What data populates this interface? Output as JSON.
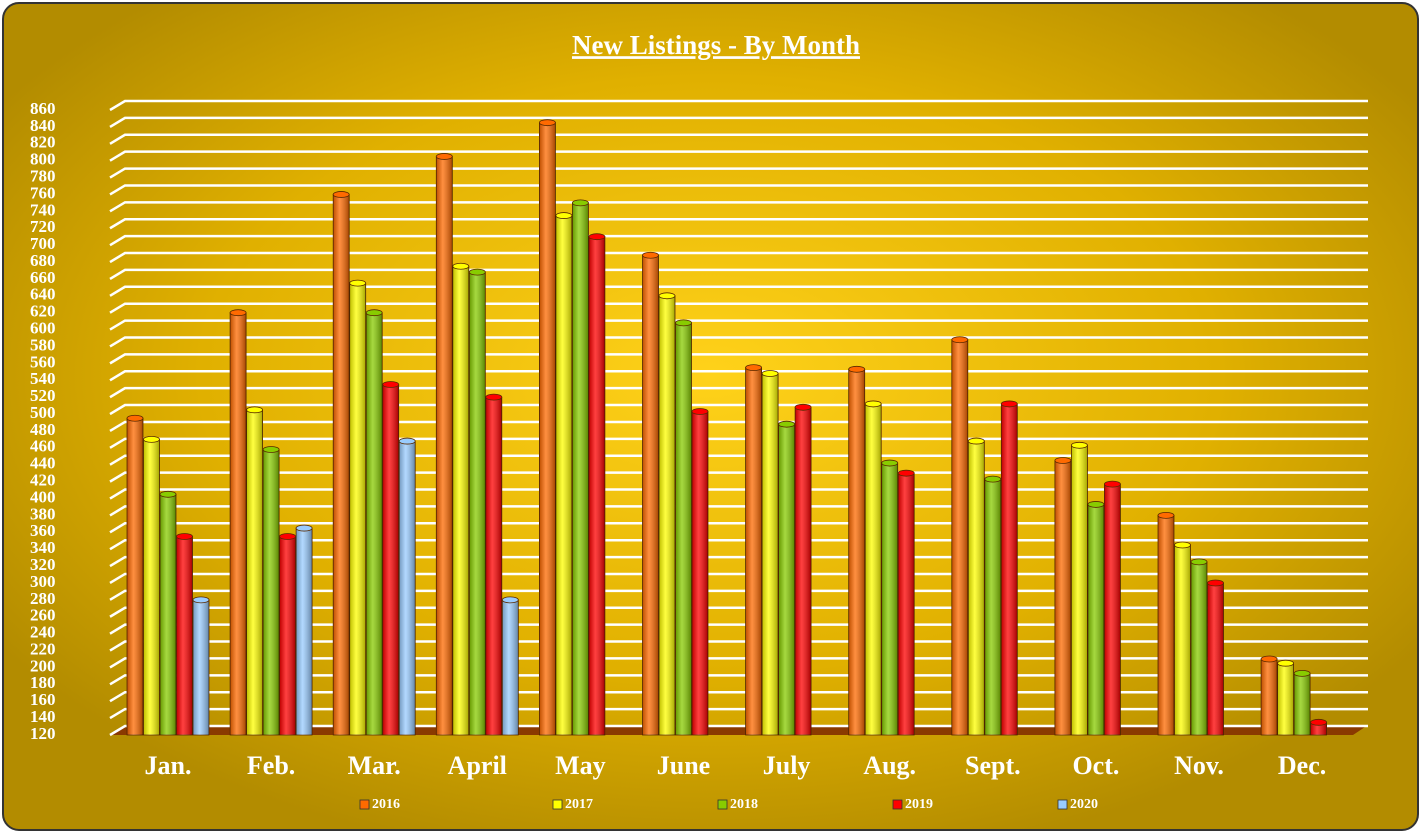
{
  "chart_data": {
    "type": "bar",
    "title": "New Listings - By Month",
    "categories": [
      "Jan.",
      "Feb.",
      "Mar.",
      "April",
      "May",
      "June",
      "July",
      "Aug.",
      "Sept.",
      "Oct.",
      "Nov.",
      "Dec."
    ],
    "series": [
      {
        "name": "2016",
        "color": "#ff6a00",
        "values": [
          495,
          620,
          760,
          805,
          845,
          688,
          555,
          553,
          588,
          445,
          380,
          210
        ]
      },
      {
        "name": "2017",
        "color": "#ffff00",
        "values": [
          470,
          505,
          655,
          675,
          735,
          640,
          548,
          512,
          468,
          463,
          345,
          205
        ]
      },
      {
        "name": "2018",
        "color": "#88cc00",
        "values": [
          405,
          458,
          620,
          668,
          750,
          608,
          488,
          442,
          423,
          393,
          325,
          193
        ]
      },
      {
        "name": "2019",
        "color": "#ff0000",
        "values": [
          355,
          355,
          535,
          520,
          710,
          503,
          508,
          430,
          512,
          417,
          300,
          135
        ]
      },
      {
        "name": "2020",
        "color": "#99ccff",
        "values": [
          280,
          365,
          468,
          280,
          null,
          null,
          null,
          null,
          null,
          null,
          null,
          null
        ]
      }
    ],
    "ylim": [
      120,
      860
    ],
    "yticks": [
      120,
      140,
      160,
      180,
      200,
      220,
      240,
      260,
      280,
      300,
      320,
      340,
      360,
      380,
      400,
      420,
      440,
      460,
      480,
      500,
      520,
      540,
      560,
      580,
      600,
      620,
      640,
      660,
      680,
      700,
      720,
      740,
      760,
      780,
      800,
      820,
      840,
      860
    ],
    "grid": true,
    "legend": "bottom"
  }
}
